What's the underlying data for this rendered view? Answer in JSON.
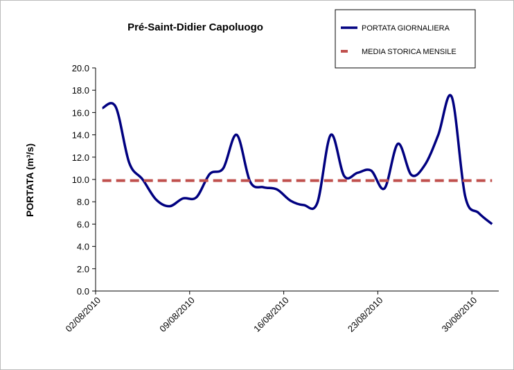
{
  "chart_data": {
    "type": "line",
    "title": "Pré-Saint-Didier  Capoluogo",
    "y_label": "PORTATA (m³/s)",
    "categories": [
      "02/08/2010",
      null,
      null,
      null,
      null,
      null,
      null,
      "09/08/2010",
      null,
      null,
      null,
      null,
      null,
      null,
      "16/08/2010",
      null,
      null,
      null,
      null,
      null,
      null,
      "23/08/2010",
      null,
      null,
      null,
      null,
      null,
      null,
      "30/08/2010",
      null
    ],
    "series": [
      {
        "name": "PORTATA GIORNALIERA",
        "color": "#000080",
        "style": "solid",
        "values": [
          16.4,
          16.5,
          11.5,
          10.0,
          8.2,
          7.6,
          8.3,
          8.4,
          10.5,
          11.0,
          14.0,
          9.8,
          9.3,
          9.1,
          8.1,
          7.7,
          7.9,
          14.0,
          10.3,
          10.6,
          10.8,
          9.2,
          13.2,
          10.4,
          11.3,
          14.0,
          17.4,
          8.5,
          7.0,
          6.0
        ]
      },
      {
        "name": "MEDIA STORICA MENSILE",
        "color": "#c0504d",
        "style": "dashed",
        "values": [
          9.9,
          9.9,
          9.9,
          9.9,
          9.9,
          9.9,
          9.9,
          9.9,
          9.9,
          9.9,
          9.9,
          9.9,
          9.9,
          9.9,
          9.9,
          9.9,
          9.9,
          9.9,
          9.9,
          9.9,
          9.9,
          9.9,
          9.9,
          9.9,
          9.9,
          9.9,
          9.9,
          9.9,
          9.9,
          9.9
        ]
      }
    ],
    "ylim": [
      0,
      20
    ],
    "yticks": [
      {
        "value": 0,
        "label": "0.0"
      },
      {
        "value": 2,
        "label": "2.0"
      },
      {
        "value": 4,
        "label": "4.0"
      },
      {
        "value": 6,
        "label": "6.0"
      },
      {
        "value": 8,
        "label": "8.0"
      },
      {
        "value": 10,
        "label": "10.0"
      },
      {
        "value": 12,
        "label": "12.0"
      },
      {
        "value": 14,
        "label": "14.0"
      },
      {
        "value": 16,
        "label": "16.0"
      },
      {
        "value": 18,
        "label": "18.0"
      },
      {
        "value": 20,
        "label": "20.0"
      }
    ],
    "legend": "top-right",
    "grid": false
  }
}
